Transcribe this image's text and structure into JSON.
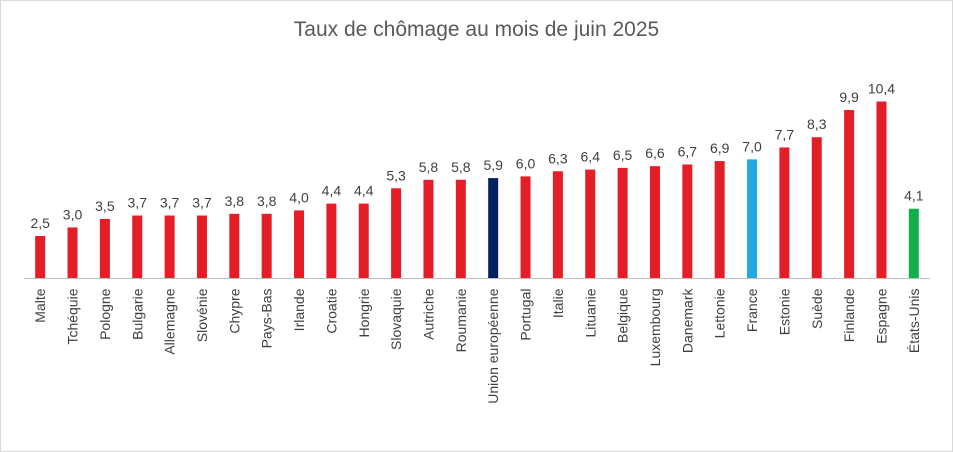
{
  "chart_data": {
    "type": "bar",
    "title": "Taux de chômage au mois de juin 2025",
    "xlabel": "",
    "ylabel": "",
    "ylim": [
      0,
      10.4
    ],
    "grid": false,
    "legend": "none",
    "categories": [
      "Malte",
      "Tchéquie",
      "Pologne",
      "Bulgarie",
      "Allemagne",
      "Slovénie",
      "Chypre",
      "Pays-Bas",
      "Irlande",
      "Croatie",
      "Hongrie",
      "Slovaquie",
      "Autriche",
      "Roumanie",
      "Union européenne",
      "Portugal",
      "Italie",
      "Lituanie",
      "Belgique",
      "Luxembourg",
      "Danemark",
      "Lettonie",
      "France",
      "Estonie",
      "Suède",
      "Finlande",
      "Espagne",
      "États-Unis"
    ],
    "values": [
      2.5,
      3.0,
      3.5,
      3.7,
      3.7,
      3.7,
      3.8,
      3.8,
      4.0,
      4.4,
      4.4,
      5.3,
      5.8,
      5.8,
      5.9,
      6.0,
      6.3,
      6.4,
      6.5,
      6.6,
      6.7,
      6.9,
      7.0,
      7.7,
      8.3,
      9.9,
      10.4,
      4.1
    ],
    "data_labels": [
      "2,5",
      "3,0",
      "3,5",
      "3,7",
      "3,7",
      "3,7",
      "3,8",
      "3,8",
      "4,0",
      "4,4",
      "4,4",
      "5,3",
      "5,8",
      "5,8",
      "5,9",
      "6,0",
      "6,3",
      "6,4",
      "6,5",
      "6,6",
      "6,7",
      "6,9",
      "7,0",
      "7,7",
      "8,3",
      "9,9",
      "10,4",
      "4,1"
    ],
    "bar_colors": [
      "#e41e26",
      "#e41e26",
      "#e41e26",
      "#e41e26",
      "#e41e26",
      "#e41e26",
      "#e41e26",
      "#e41e26",
      "#e41e26",
      "#e41e26",
      "#e41e26",
      "#e41e26",
      "#e41e26",
      "#e41e26",
      "#002060",
      "#e41e26",
      "#e41e26",
      "#e41e26",
      "#e41e26",
      "#e41e26",
      "#e41e26",
      "#e41e26",
      "#21a9e1",
      "#e41e26",
      "#e41e26",
      "#e41e26",
      "#e41e26",
      "#12b04b"
    ]
  }
}
